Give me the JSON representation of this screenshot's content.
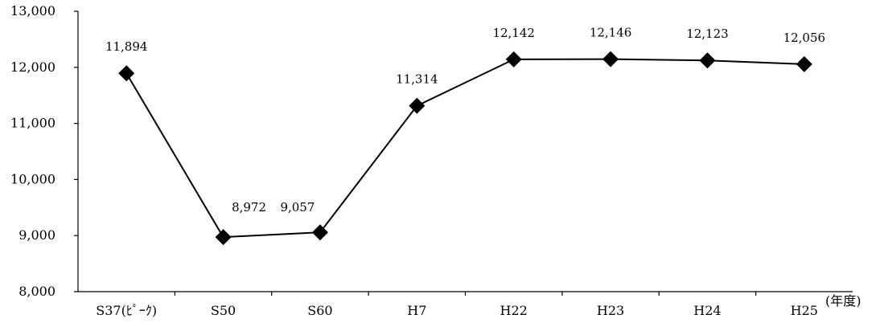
{
  "chart_data": {
    "type": "line",
    "title": "",
    "xlabel": "",
    "ylabel": "",
    "x_unit": "(年度)",
    "categories": [
      "S37(ﾋﾟｰｸ)",
      "S50",
      "S60",
      "H7",
      "H22",
      "H23",
      "H24",
      "H25"
    ],
    "values": [
      11894,
      8972,
      9057,
      11314,
      12142,
      12146,
      12123,
      12056
    ],
    "data_labels": [
      "11,894",
      "8,972",
      "9,057",
      "11,314",
      "12,142",
      "12,146",
      "12,123",
      "12,056"
    ],
    "ylim": [
      8000,
      13000
    ],
    "yticks": [
      8000,
      9000,
      10000,
      11000,
      12000,
      13000
    ],
    "ytick_labels": [
      "8,000",
      "9,000",
      "10,000",
      "11,000",
      "12,000",
      "13,000"
    ],
    "marker": "diamond",
    "line_color": "#000000",
    "grid": false,
    "legend": "none"
  }
}
